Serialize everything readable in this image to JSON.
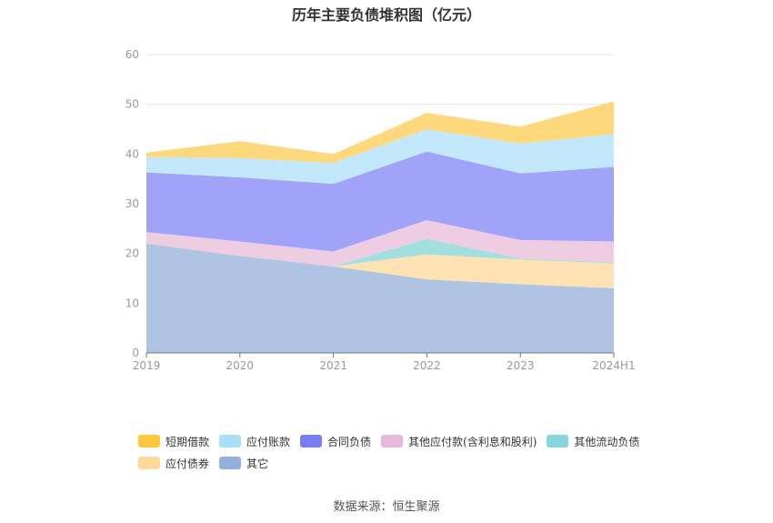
{
  "title": "历年主要负债堆积图（亿元）",
  "source": "数据来源：恒生聚源",
  "chart_data": {
    "type": "area",
    "stacked": true,
    "title": "历年主要负债堆积图（亿元）",
    "categories": [
      "2019",
      "2020",
      "2021",
      "2022",
      "2023",
      "2024H1"
    ],
    "ylim": [
      0,
      60
    ],
    "yticks": [
      0,
      10,
      20,
      30,
      40,
      50,
      60
    ],
    "grid": true,
    "legend_position": "bottom",
    "stack_order": [
      "其它",
      "应付债券",
      "其他流动负债",
      "其他应付款(含利息和股利)",
      "合同负债",
      "应付账款",
      "短期借款"
    ],
    "series": [
      {
        "name": "短期借款",
        "color": "#ffc53d",
        "fill": "#fed87c",
        "values": [
          0.9,
          3.4,
          1.8,
          3.3,
          3.4,
          6.6
        ]
      },
      {
        "name": "应付账款",
        "color": "#a8e0fb",
        "fill": "#c3e7fb",
        "values": [
          3.1,
          3.9,
          4.2,
          4.5,
          6.0,
          6.6
        ]
      },
      {
        "name": "合同负债",
        "color": "#7b7ef0",
        "fill": "#a0a3f7",
        "values": [
          12.0,
          12.9,
          13.6,
          13.8,
          13.4,
          15.0
        ]
      },
      {
        "name": "其他应付款(含利息和股利)",
        "color": "#e8b8dc",
        "fill": "#eecde3",
        "values": [
          2.3,
          2.9,
          3.0,
          3.7,
          3.7,
          4.2
        ]
      },
      {
        "name": "其他流动负债",
        "color": "#86d6dc",
        "fill": "#a4dfdf",
        "values": [
          0.0,
          0.0,
          0.0,
          3.2,
          0.2,
          0.2
        ]
      },
      {
        "name": "应付债券",
        "color": "#ffd99a",
        "fill": "#fde3b3",
        "values": [
          0.0,
          0.0,
          0.0,
          5.0,
          5.0,
          5.0
        ]
      },
      {
        "name": "其它",
        "color": "#94aedd",
        "fill": "#afc3e3",
        "values": [
          22.0,
          19.5,
          17.4,
          14.8,
          13.8,
          13.0
        ]
      }
    ]
  },
  "legend": {
    "row1": [
      "短期借款",
      "应付账款",
      "合同负债",
      "其他应付款(含利息和股利)",
      "其他流动负债"
    ],
    "row2": [
      "应付债券",
      "其它"
    ]
  }
}
